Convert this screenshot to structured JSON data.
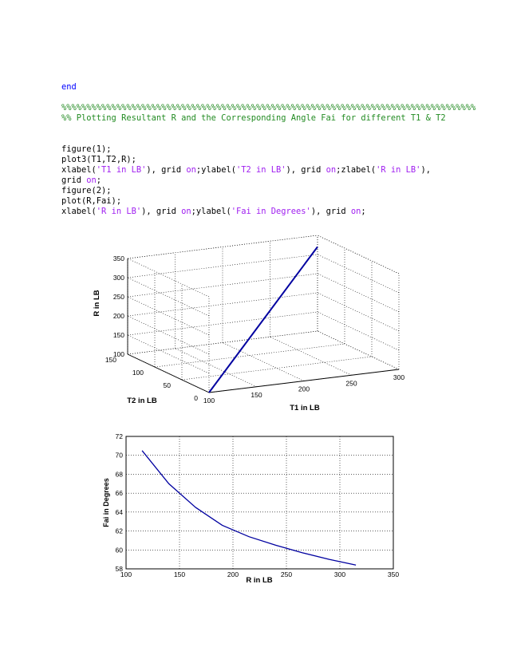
{
  "code": {
    "end_kw": "end",
    "comment_line1": "%%%%%%%%%%%%%%%%%%%%%%%%%%%%%%%%%%%%%%%%%%%%%%%%%%%%%%%%%%%%%%%%%%%%%%%%%%%%%%%%%%%",
    "comment_line2": "%% Plotting Resultant R and the Corresponding Angle Fai for different T1 & T2",
    "line_figure1": "figure(1);",
    "line_plot3": "plot3(T1,T2,R);",
    "l6_a": "xlabel(",
    "l6_s1": "'T1 in LB'",
    "l6_b": "), grid ",
    "l6_on1": "on",
    "l6_c": ";ylabel(",
    "l6_s2": "'T2 in LB'",
    "l6_d": "), grid ",
    "l6_on2": "on",
    "l6_e": ";zlabel(",
    "l6_s3": "'R in LB'",
    "l6_f": "),",
    "l7_a": "grid ",
    "l7_on": "on",
    "l7_b": ";",
    "line_figure2": "figure(2);",
    "line_plot": "plot(R,Fai);",
    "l10_a": "xlabel(",
    "l10_s1": "'R in LB'",
    "l10_b": "), grid ",
    "l10_on1": "on",
    "l10_c": ";ylabel(",
    "l10_s2": "'Fai in Degrees'",
    "l10_d": "), grid ",
    "l10_on2": "on",
    "l10_e": ";",
    "colors": {
      "keyword": "#0000ff",
      "comment": "#228b22",
      "string": "#a020f0"
    }
  },
  "chart_data": [
    {
      "type": "line3d",
      "zlabel": "R in LB",
      "ylabel": "T2 in LB",
      "xlabel": "T1 in LB",
      "x_ticks": [
        "100",
        "150",
        "200",
        "250",
        "300"
      ],
      "y_ticks": [
        "0",
        "50",
        "100",
        "150"
      ],
      "z_ticks": [
        "100",
        "150",
        "200",
        "250",
        "300",
        "350"
      ],
      "xlim": [
        100,
        300
      ],
      "ylim": [
        0,
        150
      ],
      "zlim": [
        100,
        350
      ],
      "grid": true,
      "series": [
        {
          "x": [
            100,
            300
          ],
          "y": [
            0,
            150
          ],
          "z": [
            100,
            320
          ],
          "color": "#0000a0"
        }
      ]
    },
    {
      "type": "line",
      "xlabel": "R in LB",
      "ylabel": "Fai in Degrees",
      "x_ticks": [
        "100",
        "150",
        "200",
        "250",
        "300",
        "350"
      ],
      "y_ticks": [
        "58",
        "60",
        "62",
        "64",
        "66",
        "68",
        "70",
        "72"
      ],
      "xlim": [
        100,
        350
      ],
      "ylim": [
        58,
        72
      ],
      "grid": true,
      "series": [
        {
          "x": [
            115,
            140,
            165,
            190,
            215,
            240,
            265,
            290,
            315
          ],
          "y": [
            70.5,
            67.0,
            64.5,
            62.6,
            61.4,
            60.5,
            59.7,
            59.0,
            58.4
          ],
          "color": "#0000a0"
        }
      ]
    }
  ]
}
